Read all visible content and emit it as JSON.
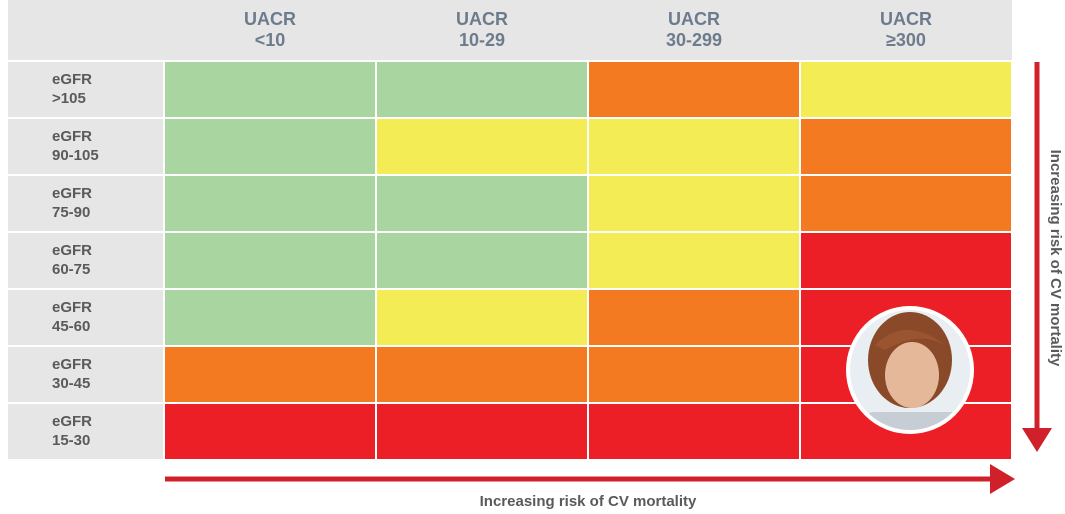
{
  "header": {
    "columns": [
      {
        "line1": "UACR",
        "line2": "<10"
      },
      {
        "line1": "UACR",
        "line2": "10-29"
      },
      {
        "line1": "UACR",
        "line2": "30-299"
      },
      {
        "line1": "UACR",
        "line2": "≥300"
      }
    ]
  },
  "rows": [
    {
      "line1": "eGFR",
      "line2": ">105",
      "cells": [
        "#a8d5a0",
        "#a8d5a0",
        "#f47a22",
        "#f4ec55"
      ]
    },
    {
      "line1": "eGFR",
      "line2": "90-105",
      "cells": [
        "#a8d5a0",
        "#f4ec55",
        "#f4ec55",
        "#f47a22"
      ]
    },
    {
      "line1": "eGFR",
      "line2": "75-90",
      "cells": [
        "#a8d5a0",
        "#a8d5a0",
        "#f4ec55",
        "#f47a22"
      ]
    },
    {
      "line1": "eGFR",
      "line2": "60-75",
      "cells": [
        "#a8d5a0",
        "#a8d5a0",
        "#f4ec55",
        "#ed1f26"
      ]
    },
    {
      "line1": "eGFR",
      "line2": "45-60",
      "cells": [
        "#a8d5a0",
        "#f4ec55",
        "#f47a22",
        "#ed1f26"
      ]
    },
    {
      "line1": "eGFR",
      "line2": "30-45",
      "cells": [
        "#f47a22",
        "#f47a22",
        "#f47a22",
        "#ed1f26"
      ]
    },
    {
      "line1": "eGFR",
      "line2": "15-30",
      "cells": [
        "#ed1f26",
        "#ed1f26",
        "#ed1f26",
        "#ed1f26"
      ]
    }
  ],
  "right_label": "Increasing risk of CV mortality",
  "bottom_label": "Increasing risk of CV mortality"
}
